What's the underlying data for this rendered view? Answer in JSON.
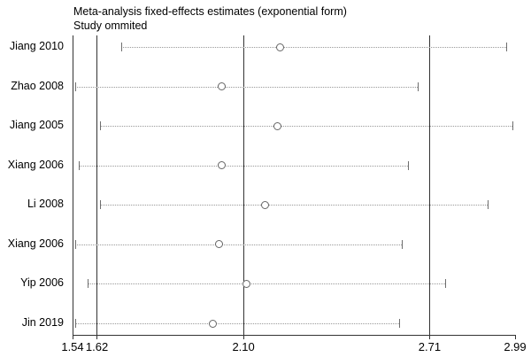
{
  "chart_data": {
    "type": "scatter",
    "subtype": "meta-analysis-influence-plot",
    "title": "Meta-analysis fixed-effects estimates (exponential form)",
    "subtitle": "Study ommited",
    "xlabel": "",
    "ylabel": "",
    "xlim": [
      1.54,
      2.99
    ],
    "x_tick_values": [
      1.54,
      1.62,
      2.1,
      2.71,
      2.99
    ],
    "x_tick_labels": [
      "1.54",
      "1.62",
      "2.10",
      "2.71",
      "2.99"
    ],
    "ref_line_values": [
      1.62,
      2.1,
      2.71
    ],
    "grid": false,
    "legend": false,
    "marker": "open-circle",
    "studies": [
      {
        "label": "Jiang 2010",
        "lower": 1.7,
        "estimate": 2.22,
        "upper": 2.96
      },
      {
        "label": "Zhao 2008",
        "lower": 1.55,
        "estimate": 2.03,
        "upper": 2.67
      },
      {
        "label": "Jiang 2005",
        "lower": 1.63,
        "estimate": 2.21,
        "upper": 2.98
      },
      {
        "label": "Xiang 2006",
        "lower": 1.56,
        "estimate": 2.03,
        "upper": 2.64
      },
      {
        "label": "Li 2008",
        "lower": 1.63,
        "estimate": 2.17,
        "upper": 2.9
      },
      {
        "label": "Xiang 2006",
        "lower": 1.55,
        "estimate": 2.02,
        "upper": 2.62
      },
      {
        "label": "Yip 2006",
        "lower": 1.59,
        "estimate": 2.11,
        "upper": 2.76
      },
      {
        "label": "Jin 2019",
        "lower": 1.55,
        "estimate": 2.0,
        "upper": 2.61
      }
    ],
    "colors": {
      "background": "#ffffff",
      "axis": "#333333",
      "ref_line": "#333333",
      "ci_dotted_line": "#999999",
      "ci_cap": "#6e6e6e",
      "marker_outline": "#666666",
      "text": "#000000"
    }
  }
}
